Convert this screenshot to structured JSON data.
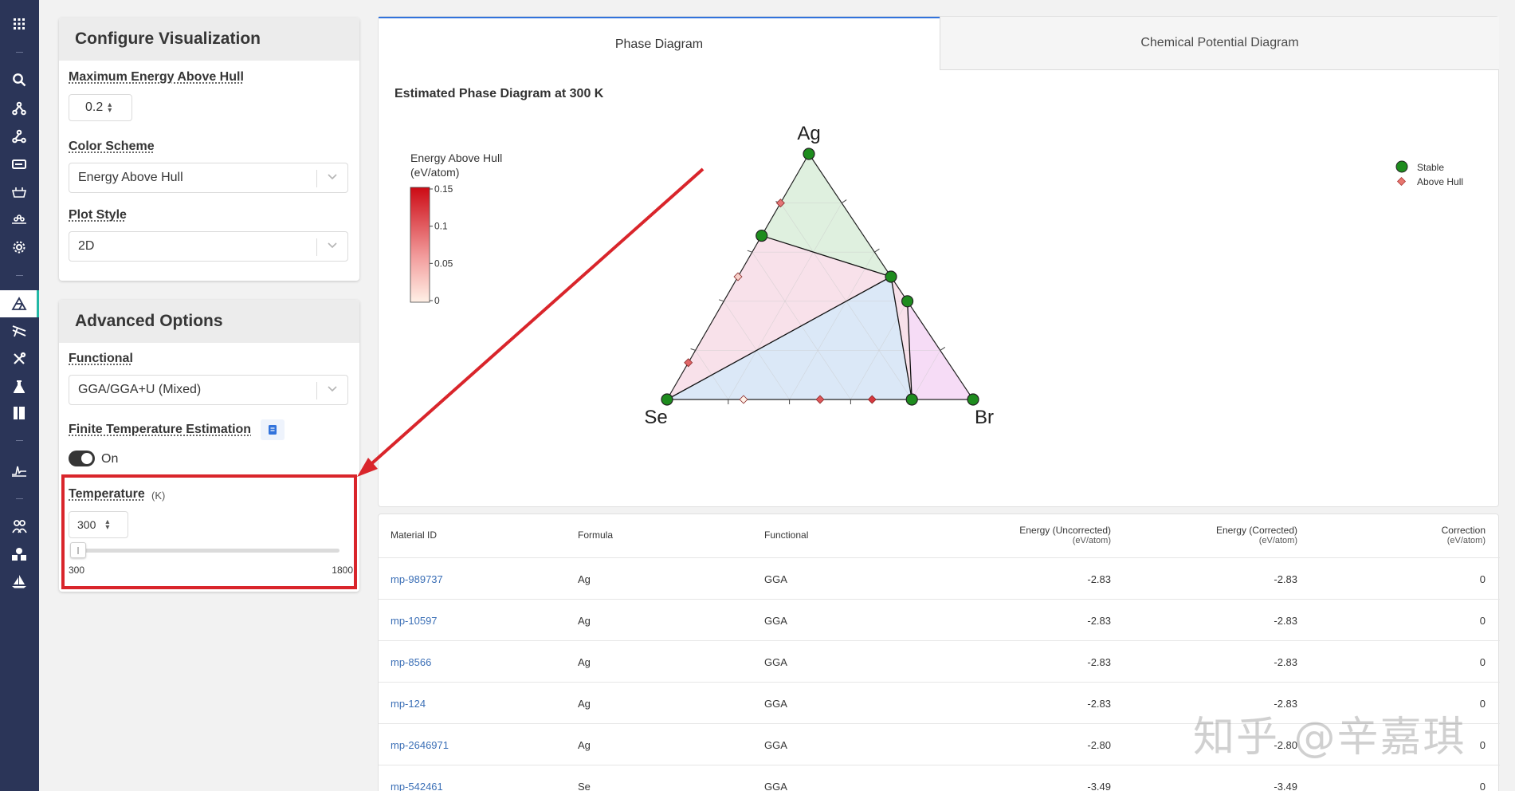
{
  "config": {
    "title": "Configure Visualization",
    "max_energy_label": "Maximum Energy Above Hull",
    "max_energy_value": "0.2",
    "color_scheme_label": "Color Scheme",
    "color_scheme_value": "Energy Above Hull",
    "plot_style_label": "Plot Style",
    "plot_style_value": "2D"
  },
  "advanced": {
    "title": "Advanced Options",
    "functional_label": "Functional",
    "functional_value": "GGA/GGA+U (Mixed)",
    "finite_temp_label": "Finite Temperature Estimation",
    "toggle_text": "On",
    "toggle_on": true,
    "temperature_label": "Temperature",
    "temperature_unit": "(K)",
    "temperature_value": "300",
    "slider_min": "300",
    "slider_max": "1800",
    "slider_fraction": 0
  },
  "tabs": [
    {
      "label": "Phase Diagram",
      "active": true
    },
    {
      "label": "Chemical Potential Diagram",
      "active": false
    }
  ],
  "chart_title": "Estimated Phase Diagram at 300 K",
  "colorbar": {
    "title_line1": "Energy Above Hull",
    "title_line2": "(eV/atom)",
    "ticks": [
      "0.15",
      "0.1",
      "0.05",
      "0"
    ]
  },
  "legend": {
    "stable": "Stable",
    "above_hull": "Above Hull"
  },
  "chart_data": {
    "type": "ternary",
    "vertices": [
      "Ag",
      "Se",
      "Br"
    ],
    "stable_points": [
      {
        "Ag": 1.0,
        "Se": 0.0,
        "Br": 0.0
      },
      {
        "Ag": 0.0,
        "Se": 1.0,
        "Br": 0.0
      },
      {
        "Ag": 0.0,
        "Se": 0.0,
        "Br": 1.0
      },
      {
        "Ag": 0.667,
        "Se": 0.333,
        "Br": 0.0
      },
      {
        "Ag": 0.5,
        "Se": 0.0,
        "Br": 0.5
      },
      {
        "Ag": 0.4,
        "Se": 0.0,
        "Br": 0.6
      },
      {
        "Ag": 0.0,
        "Se": 0.2,
        "Br": 0.8
      }
    ],
    "above_hull_points": [
      {
        "Ag": 0.8,
        "Se": 0.2,
        "Br": 0.0,
        "e": 0.08
      },
      {
        "Ag": 0.5,
        "Se": 0.5,
        "Br": 0.0,
        "e": 0.02
      },
      {
        "Ag": 0.15,
        "Se": 0.85,
        "Br": 0.0,
        "e": 0.09
      },
      {
        "Ag": 0.0,
        "Se": 0.75,
        "Br": 0.25,
        "e": 0.0
      },
      {
        "Ag": 0.0,
        "Se": 0.5,
        "Br": 0.5,
        "e": 0.1
      },
      {
        "Ag": 0.0,
        "Se": 0.33,
        "Br": 0.67,
        "e": 0.12
      },
      {
        "Ag": 0.5,
        "Se": 0.0,
        "Br": 0.5,
        "e": 0.1
      }
    ],
    "tie_lines": [
      [
        {
          "Ag": 0.667,
          "Se": 0.333,
          "Br": 0.0
        },
        {
          "Ag": 0.5,
          "Se": 0.0,
          "Br": 0.5
        }
      ],
      [
        {
          "Ag": 0.0,
          "Se": 1.0,
          "Br": 0.0
        },
        {
          "Ag": 0.5,
          "Se": 0.0,
          "Br": 0.5
        }
      ],
      [
        {
          "Ag": 0.5,
          "Se": 0.0,
          "Br": 0.5
        },
        {
          "Ag": 0.0,
          "Se": 0.2,
          "Br": 0.8
        }
      ],
      [
        {
          "Ag": 0.4,
          "Se": 0.0,
          "Br": 0.6
        },
        {
          "Ag": 0.0,
          "Se": 0.2,
          "Br": 0.8
        }
      ]
    ],
    "regions": [
      {
        "color": "#dff0df",
        "pts": [
          {
            "Ag": 1,
            "Se": 0,
            "Br": 0
          },
          {
            "Ag": 0.667,
            "Se": 0.333,
            "Br": 0
          },
          {
            "Ag": 0.5,
            "Se": 0,
            "Br": 0.5
          }
        ]
      },
      {
        "color": "#f8e1ea",
        "pts": [
          {
            "Ag": 0.667,
            "Se": 0.333,
            "Br": 0
          },
          {
            "Ag": 0,
            "Se": 1,
            "Br": 0
          },
          {
            "Ag": 0.5,
            "Se": 0,
            "Br": 0.5
          }
        ]
      },
      {
        "color": "#dbe8f7",
        "pts": [
          {
            "Ag": 0,
            "Se": 1,
            "Br": 0
          },
          {
            "Ag": 0,
            "Se": 0.2,
            "Br": 0.8
          },
          {
            "Ag": 0.5,
            "Se": 0,
            "Br": 0.5
          }
        ]
      },
      {
        "color": "#f8e1ea",
        "pts": [
          {
            "Ag": 0.5,
            "Se": 0,
            "Br": 0.5
          },
          {
            "Ag": 0,
            "Se": 0.2,
            "Br": 0.8
          },
          {
            "Ag": 0.4,
            "Se": 0,
            "Br": 0.6
          }
        ]
      },
      {
        "color": "#f6dcf6",
        "pts": [
          {
            "Ag": 0.4,
            "Se": 0,
            "Br": 0.6
          },
          {
            "Ag": 0,
            "Se": 0.2,
            "Br": 0.8
          },
          {
            "Ag": 0,
            "Se": 0,
            "Br": 1
          }
        ]
      }
    ]
  },
  "table": {
    "headers": [
      {
        "label": "Material ID",
        "unit": ""
      },
      {
        "label": "Formula",
        "unit": ""
      },
      {
        "label": "Functional",
        "unit": ""
      },
      {
        "label": "Energy (Uncorrected)",
        "unit": "(eV/atom)"
      },
      {
        "label": "Energy (Corrected)",
        "unit": "(eV/atom)"
      },
      {
        "label": "Correction",
        "unit": "(eV/atom)"
      }
    ],
    "rows": [
      {
        "id": "mp-989737",
        "formula": "Ag",
        "functional": "GGA",
        "e_unc": "-2.83",
        "e_cor": "-2.83",
        "corr": "0"
      },
      {
        "id": "mp-10597",
        "formula": "Ag",
        "functional": "GGA",
        "e_unc": "-2.83",
        "e_cor": "-2.83",
        "corr": "0"
      },
      {
        "id": "mp-8566",
        "formula": "Ag",
        "functional": "GGA",
        "e_unc": "-2.83",
        "e_cor": "-2.83",
        "corr": "0"
      },
      {
        "id": "mp-124",
        "formula": "Ag",
        "functional": "GGA",
        "e_unc": "-2.83",
        "e_cor": "-2.83",
        "corr": "0"
      },
      {
        "id": "mp-2646971",
        "formula": "Ag",
        "functional": "GGA",
        "e_unc": "-2.80",
        "e_cor": "-2.80",
        "corr": "0"
      },
      {
        "id": "mp-542461",
        "formula": "Se",
        "functional": "GGA",
        "e_unc": "-3.49",
        "e_cor": "-3.49",
        "corr": "0"
      }
    ]
  },
  "watermark": "知乎 @辛嘉琪",
  "colors": {
    "rail": "#2b3558",
    "accent": "#3273dc",
    "annotation": "#d9252b",
    "stable": "#1e8c1e"
  },
  "rail_icons": [
    "apps-icon",
    "search-icon",
    "molecule-icon",
    "molecule-alt-icon",
    "battery-icon",
    "catalysis-icon",
    "surface-icon",
    "settings-icon",
    "phase-diagram-icon",
    "pourbaix-icon",
    "tools-icon",
    "flask-icon",
    "docs-icon",
    "spectrum-icon",
    "users-icon",
    "shapes-icon",
    "sailboat-icon"
  ]
}
